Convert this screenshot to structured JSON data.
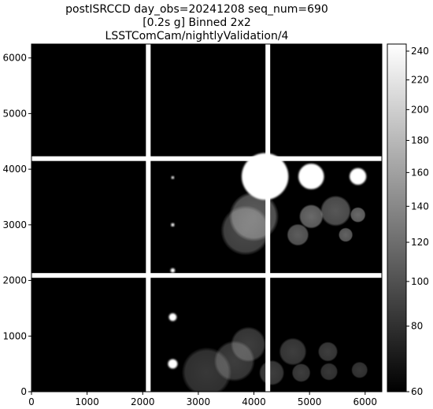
{
  "chart_data": {
    "type": "heatmap",
    "title": [
      "postISRCCD day_obs=20241208 seq_num=690",
      "[0.2s g] Binned 2x2",
      "LSSTComCam/nightlyValidation/4"
    ],
    "xlabel": "",
    "ylabel": "",
    "xlim": [
      0,
      6300
    ],
    "ylim": [
      0,
      6250
    ],
    "x_ticks": [
      0,
      1000,
      2000,
      3000,
      4000,
      5000,
      6000
    ],
    "y_ticks": [
      0,
      1000,
      2000,
      3000,
      4000,
      5000,
      6000
    ],
    "colormap": "gray",
    "color_scale": "nonlinear",
    "colorbar_range": [
      60,
      245
    ],
    "colorbar_ticks": [
      60,
      80,
      100,
      120,
      140,
      160,
      180,
      200,
      220,
      240
    ],
    "background_level": 35,
    "detector_gaps": {
      "vertical_x": [
        2100,
        4250
      ],
      "horizontal_y": [
        2090,
        4190
      ],
      "gap_value": 245
    },
    "sources": [
      {
        "x": 4200,
        "y": 3870,
        "r": 420,
        "value": 245
      },
      {
        "x": 5030,
        "y": 3870,
        "r": 230,
        "value": 245
      },
      {
        "x": 5870,
        "y": 3870,
        "r": 150,
        "value": 245
      },
      {
        "x": 2540,
        "y": 3850,
        "r": 25,
        "value": 245
      },
      {
        "x": 2540,
        "y": 3000,
        "r": 30,
        "value": 245
      },
      {
        "x": 2540,
        "y": 2180,
        "r": 40,
        "value": 245
      },
      {
        "x": 2540,
        "y": 1340,
        "r": 70,
        "value": 245
      },
      {
        "x": 2540,
        "y": 500,
        "r": 85,
        "value": 245
      }
    ],
    "ghosts": [
      {
        "x": 4000,
        "y": 3150,
        "r": 450,
        "value": 110
      },
      {
        "x": 3850,
        "y": 2900,
        "r": 450,
        "value": 95
      },
      {
        "x": 5030,
        "y": 3150,
        "r": 220,
        "value": 120
      },
      {
        "x": 5470,
        "y": 3250,
        "r": 280,
        "value": 105
      },
      {
        "x": 5870,
        "y": 3180,
        "r": 140,
        "value": 120
      },
      {
        "x": 4790,
        "y": 2820,
        "r": 200,
        "value": 110
      },
      {
        "x": 5650,
        "y": 2820,
        "r": 130,
        "value": 115
      },
      {
        "x": 3900,
        "y": 850,
        "r": 320,
        "value": 85
      },
      {
        "x": 3650,
        "y": 550,
        "r": 370,
        "value": 85
      },
      {
        "x": 3150,
        "y": 350,
        "r": 450,
        "value": 80
      },
      {
        "x": 4700,
        "y": 720,
        "r": 250,
        "value": 85
      },
      {
        "x": 5330,
        "y": 720,
        "r": 180,
        "value": 85
      },
      {
        "x": 4320,
        "y": 340,
        "r": 230,
        "value": 85
      },
      {
        "x": 4850,
        "y": 340,
        "r": 170,
        "value": 85
      },
      {
        "x": 5350,
        "y": 360,
        "r": 160,
        "value": 80
      },
      {
        "x": 5900,
        "y": 390,
        "r": 150,
        "value": 80
      }
    ]
  }
}
